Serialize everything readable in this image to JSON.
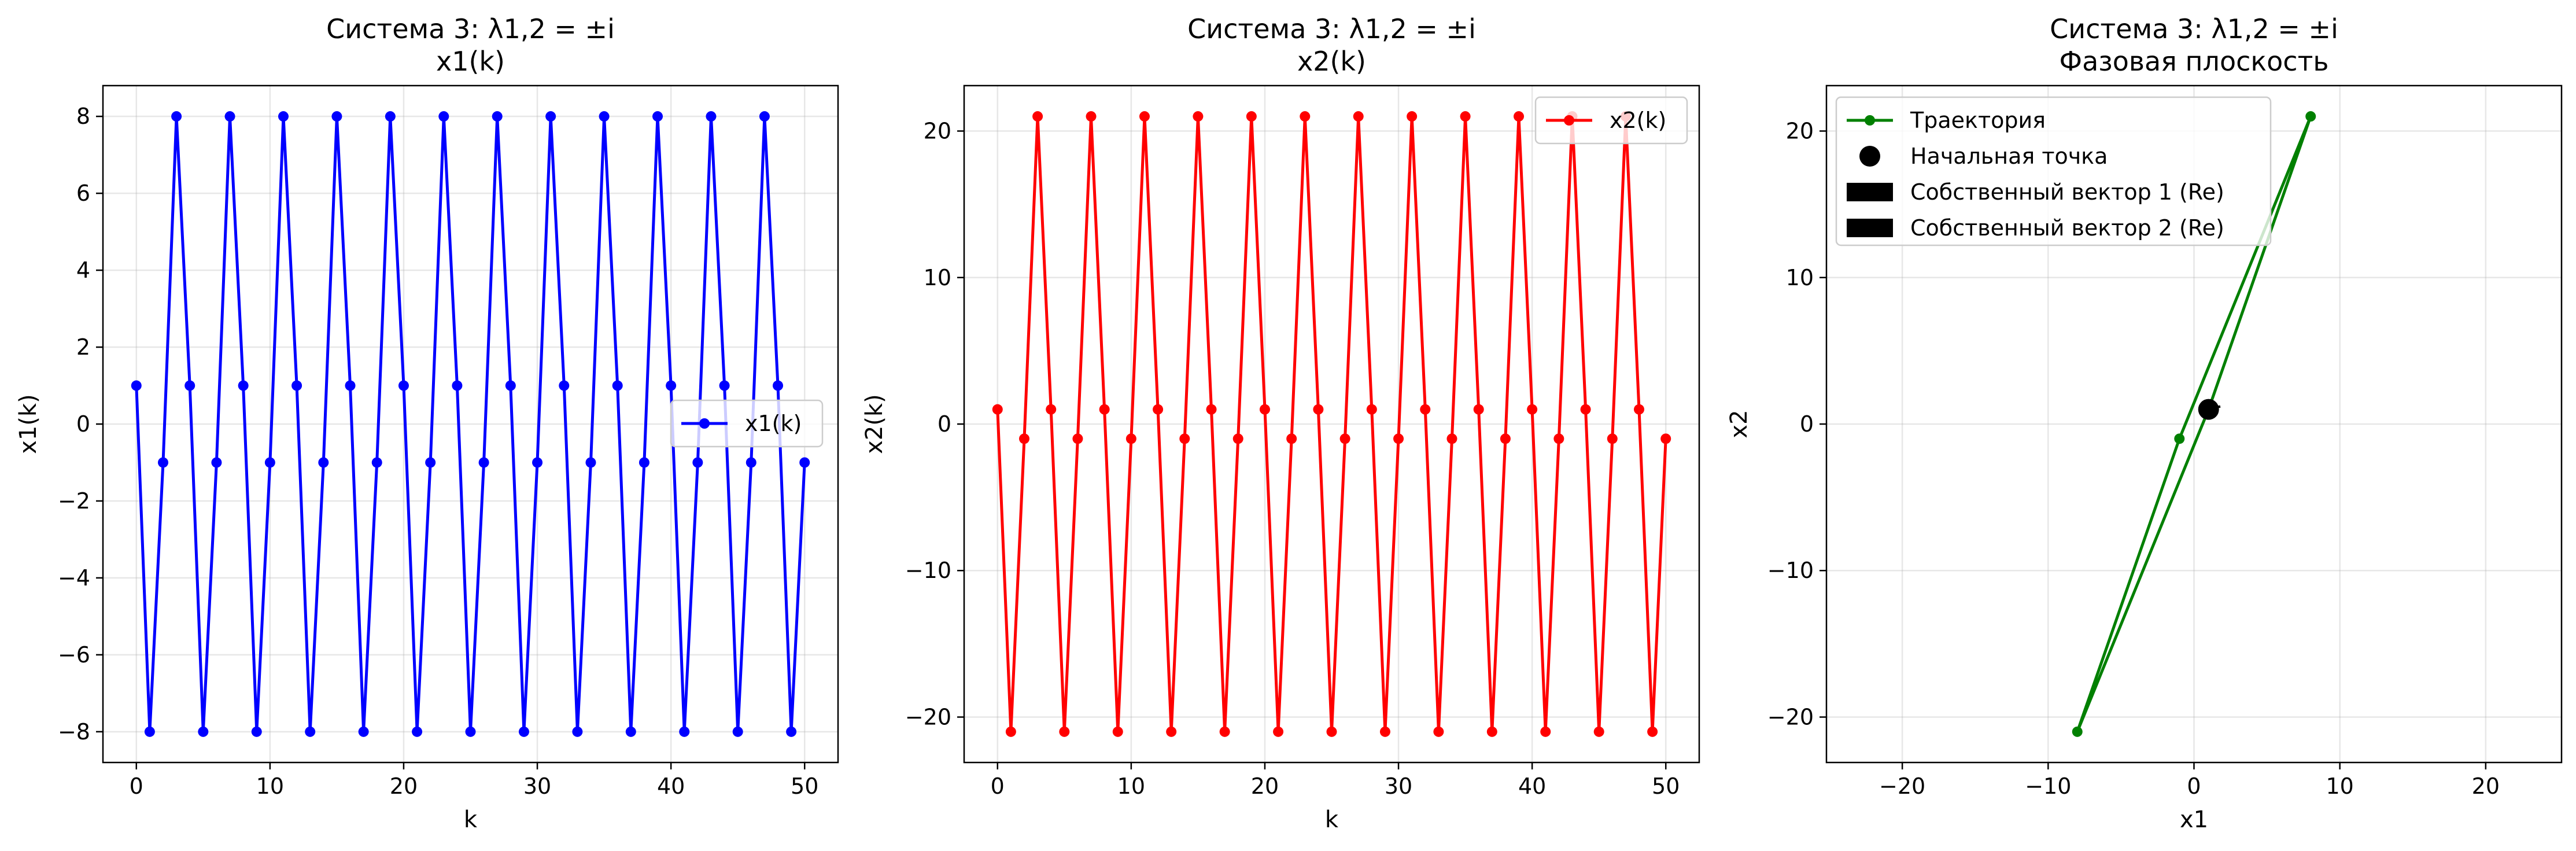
{
  "chart_data": [
    {
      "type": "line",
      "title": "Система 3: λ1,2 = ±i",
      "subtitle": "x1(k)",
      "xlabel": "k",
      "ylabel": "x1(k)",
      "xlim": [
        -2.5,
        52.5
      ],
      "ylim": [
        -8.8,
        8.8
      ],
      "xticks": [
        0,
        10,
        20,
        30,
        40,
        50
      ],
      "yticks": [
        -8,
        -6,
        -4,
        -2,
        0,
        2,
        4,
        6,
        8
      ],
      "ytick_labels": [
        "−8",
        "−6",
        "−4",
        "−2",
        "0",
        "2",
        "4",
        "6",
        "8"
      ],
      "grid": true,
      "legend_position": "center-right",
      "series": [
        {
          "name": "x1(k)",
          "color": "#0000ff",
          "marker": "circle",
          "x": [
            0,
            1,
            2,
            3,
            4,
            5,
            6,
            7,
            8,
            9,
            10,
            11,
            12,
            13,
            14,
            15,
            16,
            17,
            18,
            19,
            20,
            21,
            22,
            23,
            24,
            25,
            26,
            27,
            28,
            29,
            30,
            31,
            32,
            33,
            34,
            35,
            36,
            37,
            38,
            39,
            40,
            41,
            42,
            43,
            44,
            45,
            46,
            47,
            48,
            49,
            50
          ],
          "values": [
            1,
            -8,
            -1,
            8,
            1,
            -8,
            -1,
            8,
            1,
            -8,
            -1,
            8,
            1,
            -8,
            -1,
            8,
            1,
            -8,
            -1,
            8,
            1,
            -8,
            -1,
            8,
            1,
            -8,
            -1,
            8,
            1,
            -8,
            -1,
            8,
            1,
            -8,
            -1,
            8,
            1,
            -8,
            -1,
            8,
            1,
            -8,
            -1,
            8,
            1,
            -8,
            -1,
            8,
            1,
            -8,
            -1
          ]
        }
      ]
    },
    {
      "type": "line",
      "title": "Система 3: λ1,2 = ±i",
      "subtitle": "x2(k)",
      "xlabel": "k",
      "ylabel": "x2(k)",
      "xlim": [
        -2.5,
        52.5
      ],
      "ylim": [
        -23.1,
        23.1
      ],
      "xticks": [
        0,
        10,
        20,
        30,
        40,
        50
      ],
      "yticks": [
        -20,
        -10,
        0,
        10,
        20
      ],
      "ytick_labels": [
        "−20",
        "−10",
        "0",
        "10",
        "20"
      ],
      "grid": true,
      "legend_position": "top-right",
      "series": [
        {
          "name": "x2(k)",
          "color": "#ff0000",
          "marker": "circle",
          "x": [
            0,
            1,
            2,
            3,
            4,
            5,
            6,
            7,
            8,
            9,
            10,
            11,
            12,
            13,
            14,
            15,
            16,
            17,
            18,
            19,
            20,
            21,
            22,
            23,
            24,
            25,
            26,
            27,
            28,
            29,
            30,
            31,
            32,
            33,
            34,
            35,
            36,
            37,
            38,
            39,
            40,
            41,
            42,
            43,
            44,
            45,
            46,
            47,
            48,
            49,
            50
          ],
          "values": [
            1,
            -21,
            -1,
            21,
            1,
            -21,
            -1,
            21,
            1,
            -21,
            -1,
            21,
            1,
            -21,
            -1,
            21,
            1,
            -21,
            -1,
            21,
            1,
            -21,
            -1,
            21,
            1,
            -21,
            -1,
            21,
            1,
            -21,
            -1,
            21,
            1,
            -21,
            -1,
            21,
            1,
            -21,
            -1,
            21,
            1,
            -21,
            -1,
            21,
            1,
            -21,
            -1,
            21,
            1,
            -21,
            -1
          ]
        }
      ]
    },
    {
      "type": "line",
      "title": "Система 3: λ1,2 = ±i",
      "subtitle": "Фазовая плоскость",
      "xlabel": "x1",
      "ylabel": "x2",
      "xlim": [
        -25.2,
        25.2
      ],
      "ylim": [
        -23.1,
        23.1
      ],
      "xticks": [
        -20,
        -10,
        0,
        10,
        20
      ],
      "xtick_labels": [
        "−20",
        "−10",
        "0",
        "10",
        "20"
      ],
      "yticks": [
        -20,
        -10,
        0,
        10,
        20
      ],
      "ytick_labels": [
        "−20",
        "−10",
        "0",
        "10",
        "20"
      ],
      "grid": true,
      "legend_position": "top-left",
      "series": [
        {
          "name": "Траектория",
          "color": "#008000",
          "marker": "circle",
          "points": [
            [
              1,
              1
            ],
            [
              -8,
              -21
            ],
            [
              -1,
              -1
            ],
            [
              8,
              21
            ],
            [
              1,
              1
            ]
          ]
        },
        {
          "name": "Начальная точка",
          "color": "#000000",
          "marker": "large-circle",
          "points": [
            [
              1,
              1
            ]
          ]
        },
        {
          "name": "Собственный вектор 1 (Re)",
          "color": "#000000",
          "marker": "arrow",
          "points": [
            [
              1,
              1
            ],
            [
              0.8,
              0.2
            ]
          ]
        },
        {
          "name": "Собственный вектор 2 (Re)",
          "color": "#000000",
          "marker": "arrow",
          "points": [
            [
              1,
              1
            ],
            [
              0.8,
              0.2
            ]
          ]
        }
      ]
    }
  ]
}
